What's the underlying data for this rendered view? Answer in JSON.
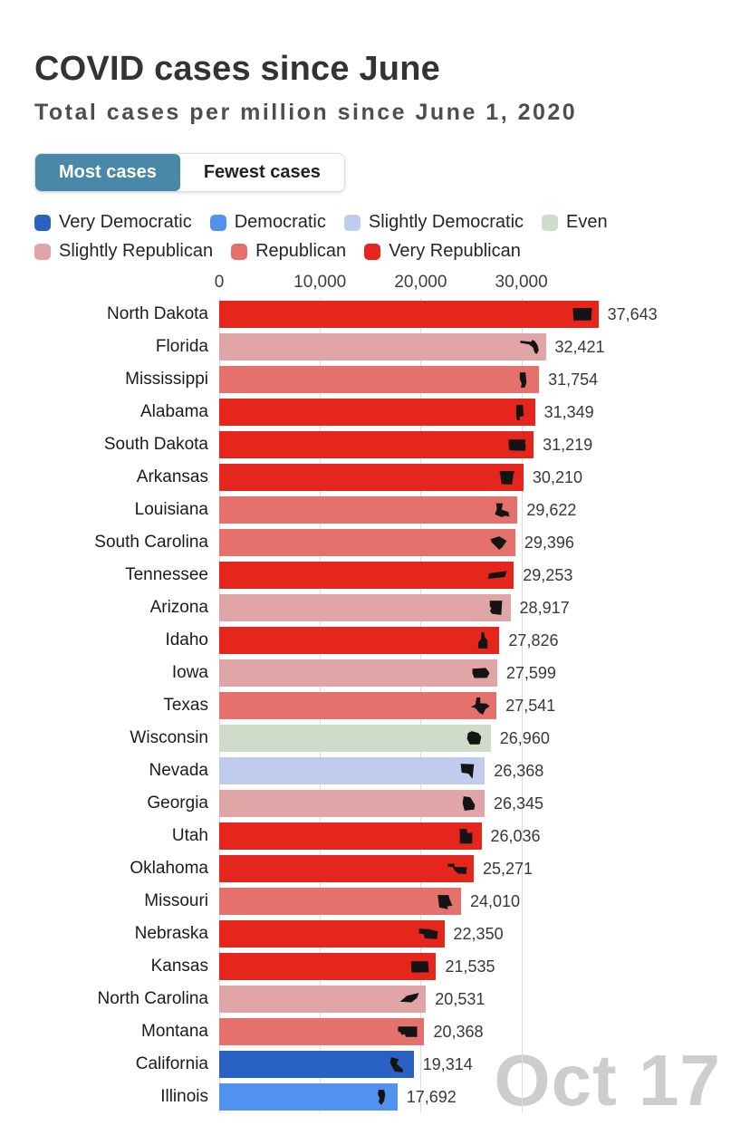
{
  "header": {
    "title": "COVID cases since June",
    "subtitle": "Total cases per million since June 1, 2020"
  },
  "tabs": [
    {
      "label": "Most cases",
      "active": true
    },
    {
      "label": "Fewest cases",
      "active": false
    }
  ],
  "legend": [
    {
      "label": "Very Democratic",
      "party": "very_democratic"
    },
    {
      "label": "Democratic",
      "party": "democratic"
    },
    {
      "label": "Slightly Democratic",
      "party": "slightly_democratic"
    },
    {
      "label": "Even",
      "party": "even"
    },
    {
      "label": "Slightly Republican",
      "party": "slightly_republican"
    },
    {
      "label": "Republican",
      "party": "republican"
    },
    {
      "label": "Very Republican",
      "party": "very_republican"
    }
  ],
  "colors": {
    "tab_active": "#4a88a9",
    "gridline": "#dcdcdc",
    "watermark": "#cdcdcd",
    "icon": "#141414",
    "party": {
      "very_democratic": "#2a62c4",
      "democratic": "#5391ee",
      "slightly_democratic": "#c0cceb",
      "even": "#cfdcca",
      "slightly_republican": "#e0a6a7",
      "republican": "#e4716b",
      "very_republican": "#e4261d"
    }
  },
  "watermark": "Oct 17",
  "chart_data": {
    "type": "bar",
    "orientation": "horizontal",
    "title": "COVID cases since June",
    "subtitle": "Total cases per million since June 1, 2020",
    "xlabel": "",
    "ylabel": "",
    "xlim": [
      0,
      40000
    ],
    "grid": true,
    "legend_position": "top",
    "x_ticks": [
      {
        "label": "0",
        "value": 0
      },
      {
        "label": "10,000",
        "value": 10000
      },
      {
        "label": "20,000",
        "value": 20000
      },
      {
        "label": "30,000",
        "value": 30000
      }
    ],
    "bars": [
      {
        "state": "North Dakota",
        "value": 37643,
        "value_label": "37,643",
        "party": "very_republican",
        "icon": "north-dakota"
      },
      {
        "state": "Florida",
        "value": 32421,
        "value_label": "32,421",
        "party": "slightly_republican",
        "icon": "florida"
      },
      {
        "state": "Mississippi",
        "value": 31754,
        "value_label": "31,754",
        "party": "republican",
        "icon": "mississippi"
      },
      {
        "state": "Alabama",
        "value": 31349,
        "value_label": "31,349",
        "party": "very_republican",
        "icon": "alabama"
      },
      {
        "state": "South Dakota",
        "value": 31219,
        "value_label": "31,219",
        "party": "very_republican",
        "icon": "south-dakota"
      },
      {
        "state": "Arkansas",
        "value": 30210,
        "value_label": "30,210",
        "party": "very_republican",
        "icon": "arkansas"
      },
      {
        "state": "Louisiana",
        "value": 29622,
        "value_label": "29,622",
        "party": "republican",
        "icon": "louisiana"
      },
      {
        "state": "South Carolina",
        "value": 29396,
        "value_label": "29,396",
        "party": "republican",
        "icon": "south-carolina"
      },
      {
        "state": "Tennessee",
        "value": 29253,
        "value_label": "29,253",
        "party": "very_republican",
        "icon": "tennessee"
      },
      {
        "state": "Arizona",
        "value": 28917,
        "value_label": "28,917",
        "party": "slightly_republican",
        "icon": "arizona"
      },
      {
        "state": "Idaho",
        "value": 27826,
        "value_label": "27,826",
        "party": "very_republican",
        "icon": "idaho"
      },
      {
        "state": "Iowa",
        "value": 27599,
        "value_label": "27,599",
        "party": "slightly_republican",
        "icon": "iowa"
      },
      {
        "state": "Texas",
        "value": 27541,
        "value_label": "27,541",
        "party": "republican",
        "icon": "texas"
      },
      {
        "state": "Wisconsin",
        "value": 26960,
        "value_label": "26,960",
        "party": "even",
        "icon": "wisconsin"
      },
      {
        "state": "Nevada",
        "value": 26368,
        "value_label": "26,368",
        "party": "slightly_democratic",
        "icon": "nevada"
      },
      {
        "state": "Georgia",
        "value": 26345,
        "value_label": "26,345",
        "party": "slightly_republican",
        "icon": "georgia"
      },
      {
        "state": "Utah",
        "value": 26036,
        "value_label": "26,036",
        "party": "very_republican",
        "icon": "utah"
      },
      {
        "state": "Oklahoma",
        "value": 25271,
        "value_label": "25,271",
        "party": "very_republican",
        "icon": "oklahoma"
      },
      {
        "state": "Missouri",
        "value": 24010,
        "value_label": "24,010",
        "party": "republican",
        "icon": "missouri"
      },
      {
        "state": "Nebraska",
        "value": 22350,
        "value_label": "22,350",
        "party": "very_republican",
        "icon": "nebraska"
      },
      {
        "state": "Kansas",
        "value": 21535,
        "value_label": "21,535",
        "party": "very_republican",
        "icon": "kansas"
      },
      {
        "state": "North Carolina",
        "value": 20531,
        "value_label": "20,531",
        "party": "slightly_republican",
        "icon": "north-carolina"
      },
      {
        "state": "Montana",
        "value": 20368,
        "value_label": "20,368",
        "party": "republican",
        "icon": "montana"
      },
      {
        "state": "California",
        "value": 19314,
        "value_label": "19,314",
        "party": "very_democratic",
        "icon": "california"
      },
      {
        "state": "Illinois",
        "value": 17692,
        "value_label": "17,692",
        "party": "democratic",
        "icon": "illinois"
      }
    ]
  }
}
